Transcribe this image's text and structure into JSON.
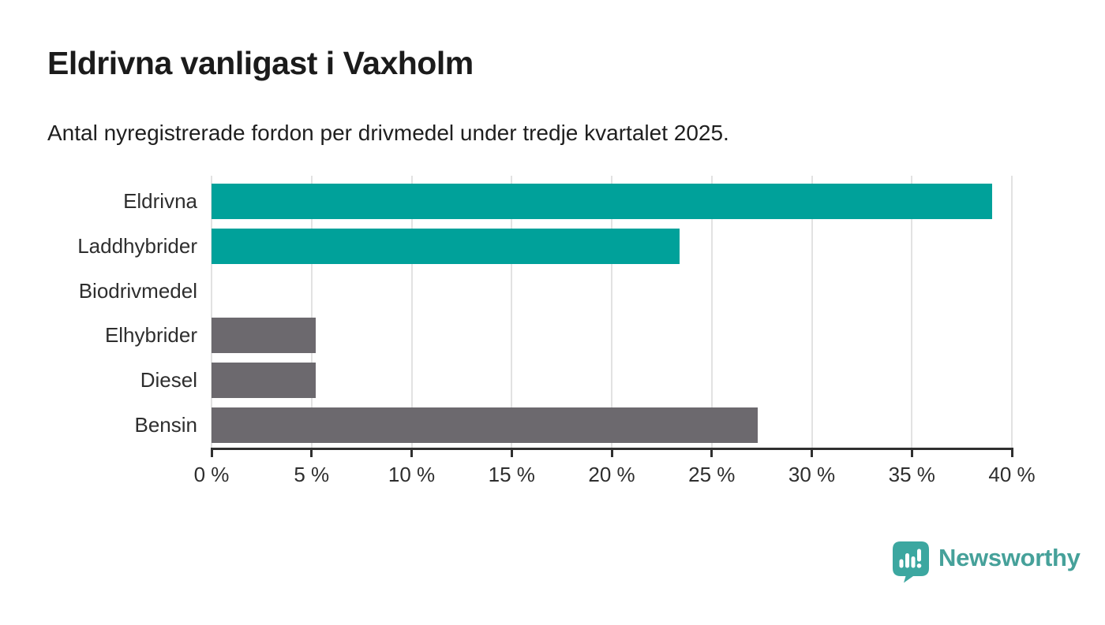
{
  "header": {
    "title": "Eldrivna vanligast i Vaxholm",
    "subtitle": "Antal nyregistrerade fordon per drivmedel under tredje kvartalet 2025."
  },
  "chart_data": {
    "type": "bar",
    "orientation": "horizontal",
    "title": "Eldrivna vanligast i Vaxholm",
    "subtitle": "Antal nyregistrerade fordon per drivmedel under tredje kvartalet 2025.",
    "categories": [
      "Eldrivna",
      "Laddhybrider",
      "Biodrivmedel",
      "Elhybrider",
      "Diesel",
      "Bensin"
    ],
    "values": [
      39.0,
      23.4,
      0,
      5.2,
      5.2,
      27.3
    ],
    "unit": "%",
    "xlim": [
      0,
      40
    ],
    "x_ticks": [
      0,
      5,
      10,
      15,
      20,
      25,
      30,
      35,
      40
    ],
    "tick_suffix": " %",
    "bar_colors": [
      "#00a19a",
      "#00a19a",
      "#6c696e",
      "#6c696e",
      "#6c696e",
      "#6c696e"
    ],
    "grid": true,
    "legend": "none",
    "colors": {
      "highlight_teal": "#00a19a",
      "default_gray": "#6c696e",
      "gridline": "#e2e2e2",
      "axis": "#2f2f2f",
      "label_text": "#2e2e2e"
    }
  },
  "footer": {
    "brand": "Newsworthy",
    "brand_color": "#46a19a",
    "icon": "bar-chart-speech-bubble-icon",
    "icon_color": "#3ca7a0"
  }
}
